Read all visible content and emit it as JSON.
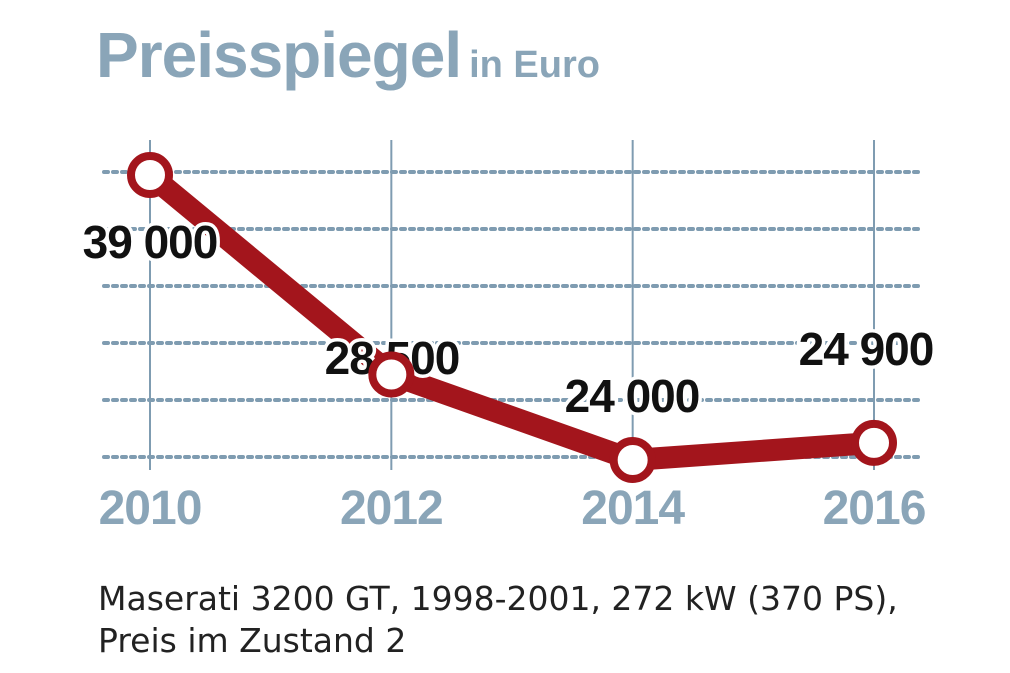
{
  "title": "Preisspiegel",
  "subtitle": "in Euro",
  "caption_line1": "Maserati 3200 GT, 1998-2001, 272 kW (370 PS),",
  "caption_line2": "Preis im Zustand 2",
  "colors": {
    "title": "#8aa5b8",
    "grid": "#7f9cb1",
    "line": "#a3151c",
    "label": "#111111"
  },
  "chart_data": {
    "type": "line",
    "categories": [
      "2010",
      "2012",
      "2014",
      "2016"
    ],
    "series": [
      {
        "values": [
          39000,
          28500,
          24000,
          24900
        ],
        "labels": [
          "39 000",
          "28 500",
          "24 000",
          "24 900"
        ]
      }
    ],
    "title": "Preisspiegel",
    "subtitle": "in Euro",
    "xlabel": "",
    "ylabel": "",
    "grid": true,
    "legend": "none"
  }
}
